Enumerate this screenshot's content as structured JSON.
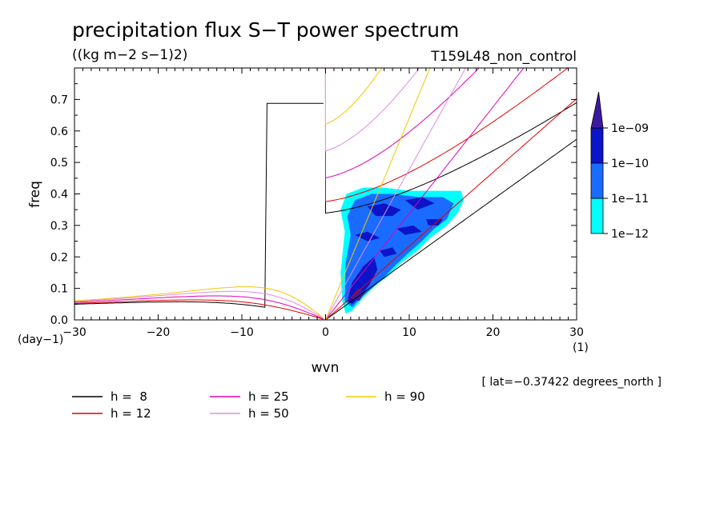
{
  "chart_data": {
    "type": "contour",
    "title": "precipitation flux S−T power spectrum",
    "units": "((kg m−2 s−1)2)",
    "run": "T159L48_non_control",
    "xlabel": "wvn",
    "ylabel": "freq",
    "x_unit": "(1)",
    "y_unit": "(day−1)",
    "latitude_note": "[ lat=−0.37422 degrees_north ]",
    "xlim": [
      -30,
      30
    ],
    "ylim": [
      0,
      0.8
    ],
    "x_ticks": [
      -30,
      -20,
      -10,
      0,
      10,
      20,
      30
    ],
    "x_tick_labels": [
      "−30",
      "−20",
      "−10",
      "0",
      "10",
      "20",
      "30"
    ],
    "y_ticks": [
      0.0,
      0.1,
      0.2,
      0.3,
      0.4,
      0.5,
      0.6,
      0.7
    ],
    "y_tick_labels": [
      "0.0",
      "0.1",
      "0.2",
      "0.3",
      "0.4",
      "0.5",
      "0.6",
      "0.7"
    ],
    "colorbar": {
      "levels": [
        "1e−12",
        "1e−11",
        "1e−10",
        "1e−09"
      ],
      "colors": [
        "#00ffff",
        "#1a6bff",
        "#0a14c8",
        "#3c1aa0"
      ]
    },
    "dispersion_curves": [
      {
        "name": "h =  8",
        "h": 8,
        "color": "#000000"
      },
      {
        "name": "h = 12",
        "h": 12,
        "color": "#e00000"
      },
      {
        "name": "h = 25",
        "h": 25,
        "color": "#e000b4"
      },
      {
        "name": "h = 50",
        "h": 50,
        "color": "#e08ce6"
      },
      {
        "name": "h = 90",
        "h": 90,
        "color": "#f0c800"
      }
    ],
    "spectrum_regions": [
      {
        "level": 0,
        "points": [
          [
            2.0,
            0.06
          ],
          [
            1.8,
            0.15
          ],
          [
            2.3,
            0.28
          ],
          [
            1.8,
            0.35
          ],
          [
            2.5,
            0.4
          ],
          [
            4.5,
            0.42
          ],
          [
            7,
            0.42
          ],
          [
            10,
            0.41
          ],
          [
            13,
            0.41
          ],
          [
            16.2,
            0.41
          ],
          [
            16.5,
            0.38
          ],
          [
            15.8,
            0.34
          ],
          [
            14.5,
            0.3
          ],
          [
            12.5,
            0.26
          ],
          [
            11,
            0.22
          ],
          [
            9,
            0.18
          ],
          [
            7.5,
            0.14
          ],
          [
            6,
            0.11
          ],
          [
            4.5,
            0.07
          ],
          [
            3.2,
            0.03
          ],
          [
            2.4,
            0.02
          ]
        ]
      },
      {
        "level": 1,
        "points": [
          [
            2.3,
            0.06
          ],
          [
            2.4,
            0.18
          ],
          [
            3,
            0.27
          ],
          [
            2.6,
            0.33
          ],
          [
            3.5,
            0.38
          ],
          [
            5.5,
            0.4
          ],
          [
            8,
            0.4
          ],
          [
            11,
            0.39
          ],
          [
            14,
            0.39
          ],
          [
            15.3,
            0.37
          ],
          [
            14.5,
            0.32
          ],
          [
            13,
            0.29
          ],
          [
            11.5,
            0.25
          ],
          [
            9.8,
            0.21
          ],
          [
            8.2,
            0.17
          ],
          [
            6.8,
            0.13
          ],
          [
            5.5,
            0.1
          ],
          [
            4.2,
            0.07
          ],
          [
            3.2,
            0.04
          ]
        ]
      },
      {
        "level": 2,
        "points": [
          [
            2.6,
            0.06
          ],
          [
            3.2,
            0.12
          ],
          [
            4.5,
            0.17
          ],
          [
            5.8,
            0.2
          ],
          [
            6.2,
            0.16
          ],
          [
            5.2,
            0.11
          ],
          [
            4,
            0.07
          ],
          [
            3.2,
            0.05
          ]
        ]
      },
      {
        "level": 2,
        "points": [
          [
            5,
            0.36
          ],
          [
            7,
            0.37
          ],
          [
            9,
            0.35
          ],
          [
            8,
            0.33
          ],
          [
            6,
            0.33
          ]
        ]
      },
      {
        "level": 2,
        "points": [
          [
            9.5,
            0.38
          ],
          [
            11.5,
            0.39
          ],
          [
            13,
            0.37
          ],
          [
            11,
            0.35
          ]
        ]
      },
      {
        "level": 2,
        "points": [
          [
            3.5,
            0.27
          ],
          [
            5,
            0.28
          ],
          [
            6.5,
            0.26
          ],
          [
            5,
            0.25
          ]
        ]
      },
      {
        "level": 2,
        "points": [
          [
            8.5,
            0.29
          ],
          [
            10.5,
            0.3
          ],
          [
            11.5,
            0.28
          ],
          [
            9.5,
            0.27
          ]
        ]
      },
      {
        "level": 2,
        "points": [
          [
            6.5,
            0.22
          ],
          [
            8,
            0.23
          ],
          [
            8.5,
            0.21
          ],
          [
            7,
            0.2
          ]
        ]
      },
      {
        "level": 2,
        "points": [
          [
            12,
            0.32
          ],
          [
            14,
            0.32
          ],
          [
            13.5,
            0.3
          ],
          [
            12.3,
            0.3
          ]
        ]
      },
      {
        "level": 3,
        "points": [
          [
            3,
            0.07
          ],
          [
            3.8,
            0.1
          ],
          [
            4.8,
            0.09
          ],
          [
            4,
            0.06
          ]
        ]
      }
    ]
  }
}
